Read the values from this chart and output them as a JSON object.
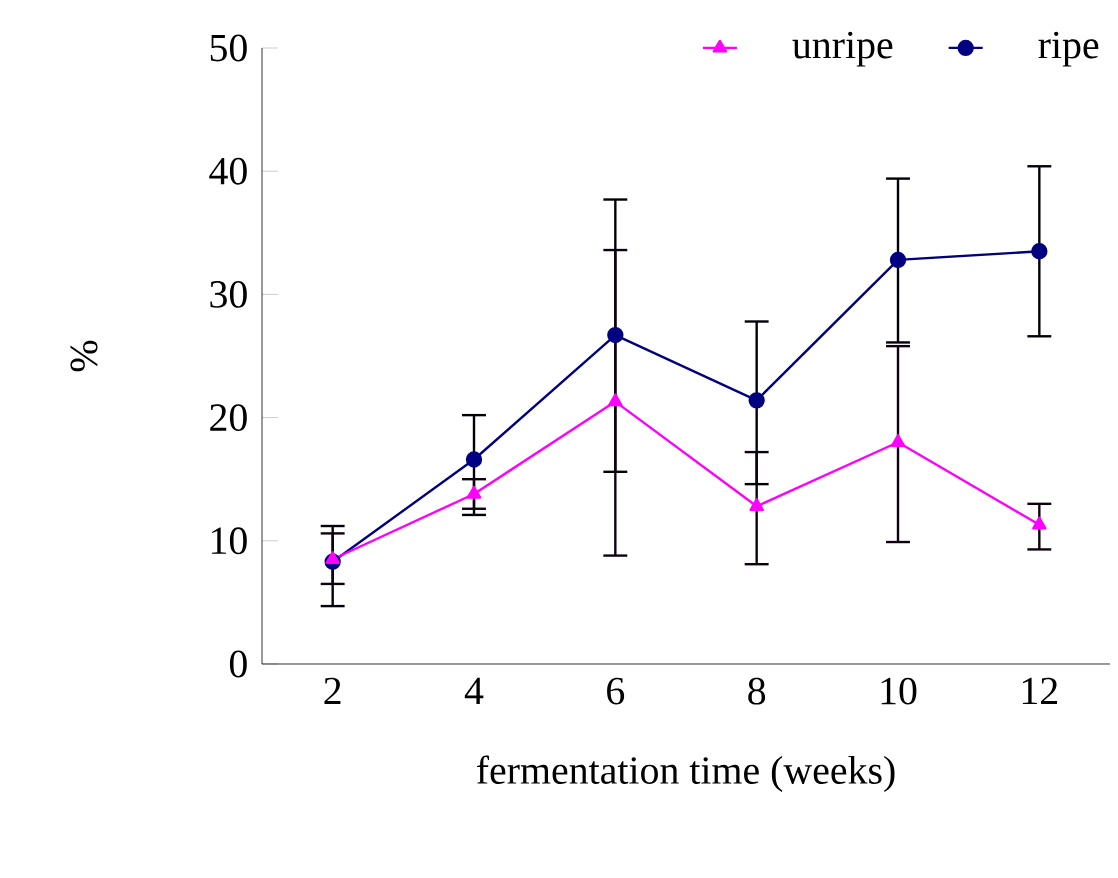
{
  "chart_data": {
    "type": "line",
    "xlabel": "fermentation time (weeks)",
    "ylabel": "%",
    "categories": [
      "2",
      "4",
      "6",
      "8",
      "10",
      "12"
    ],
    "series": [
      {
        "name": "unripe",
        "color": "#ff00ff",
        "marker": "triangle",
        "values": [
          8.5,
          13.8,
          21.3,
          12.8,
          18.0,
          11.3
        ],
        "errors": [
          [
            6.5,
            10.6
          ],
          [
            12.6,
            15.0
          ],
          [
            8.8,
            33.6
          ],
          [
            8.1,
            17.2
          ],
          [
            9.9,
            25.8
          ],
          [
            9.3,
            13.0
          ]
        ]
      },
      {
        "name": "ripe",
        "color": "#000080",
        "marker": "circle",
        "values": [
          8.3,
          16.6,
          26.7,
          21.4,
          32.8,
          33.5
        ],
        "errors": [
          [
            4.7,
            11.2
          ],
          [
            12.1,
            20.2
          ],
          [
            15.6,
            37.7
          ],
          [
            14.6,
            27.8
          ],
          [
            26.1,
            39.4
          ],
          [
            26.6,
            40.4
          ]
        ]
      }
    ],
    "ylim": [
      0,
      50
    ],
    "yticks": [
      0,
      10,
      20,
      30,
      40,
      50
    ],
    "grid": false,
    "legend": "top right"
  }
}
